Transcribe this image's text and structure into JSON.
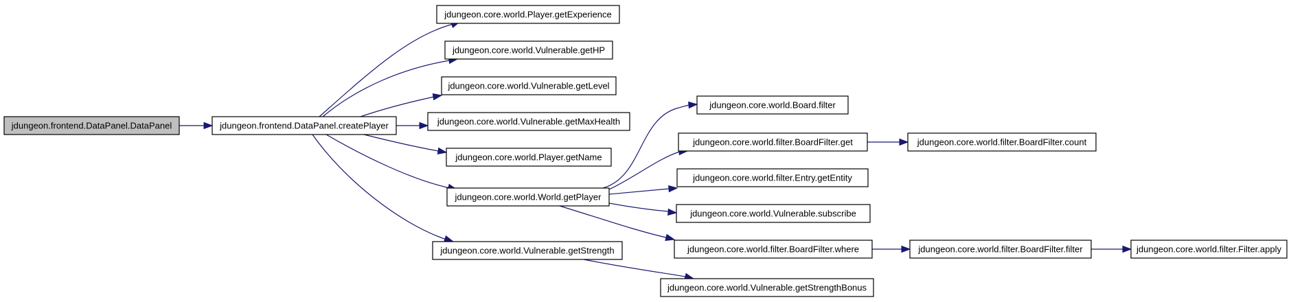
{
  "diagram": {
    "colors": {
      "edge": "#191970",
      "node_fill": "#ffffff",
      "highlight_fill": "#bfbfbf",
      "border": "#000000"
    },
    "nodes": [
      {
        "id": "n0",
        "label": "jdungeon.frontend.DataPanel.DataPanel",
        "highlighted": true
      },
      {
        "id": "n1",
        "label": "jdungeon.frontend.DataPanel.createPlayer"
      },
      {
        "id": "n2",
        "label": "jdungeon.core.world.Player.getExperience"
      },
      {
        "id": "n3",
        "label": "jdungeon.core.world.Vulnerable.getHP"
      },
      {
        "id": "n4",
        "label": "jdungeon.core.world.Vulnerable.getLevel"
      },
      {
        "id": "n5",
        "label": "jdungeon.core.world.Vulnerable.getMaxHealth"
      },
      {
        "id": "n6",
        "label": "jdungeon.core.world.Player.getName"
      },
      {
        "id": "n7",
        "label": "jdungeon.core.world.World.getPlayer"
      },
      {
        "id": "n8",
        "label": "jdungeon.core.world.Vulnerable.getStrength"
      },
      {
        "id": "n9",
        "label": "jdungeon.core.world.Board.filter"
      },
      {
        "id": "n10",
        "label": "jdungeon.core.world.filter.BoardFilter.get"
      },
      {
        "id": "n11",
        "label": "jdungeon.core.world.filter.Entry.getEntity"
      },
      {
        "id": "n12",
        "label": "jdungeon.core.world.Vulnerable.subscribe"
      },
      {
        "id": "n13",
        "label": "jdungeon.core.world.filter.BoardFilter.where"
      },
      {
        "id": "n14",
        "label": "jdungeon.core.world.Vulnerable.getStrengthBonus"
      },
      {
        "id": "n15",
        "label": "jdungeon.core.world.filter.BoardFilter.count"
      },
      {
        "id": "n16",
        "label": "jdungeon.core.world.filter.BoardFilter.filter"
      },
      {
        "id": "n17",
        "label": "jdungeon.core.world.filter.Filter.apply"
      }
    ],
    "edges": [
      {
        "from": "n0",
        "to": "n1"
      },
      {
        "from": "n1",
        "to": "n2"
      },
      {
        "from": "n1",
        "to": "n3"
      },
      {
        "from": "n1",
        "to": "n4"
      },
      {
        "from": "n1",
        "to": "n5"
      },
      {
        "from": "n1",
        "to": "n6"
      },
      {
        "from": "n1",
        "to": "n7"
      },
      {
        "from": "n1",
        "to": "n8"
      },
      {
        "from": "n7",
        "to": "n9"
      },
      {
        "from": "n7",
        "to": "n10"
      },
      {
        "from": "n7",
        "to": "n11"
      },
      {
        "from": "n7",
        "to": "n12"
      },
      {
        "from": "n7",
        "to": "n13"
      },
      {
        "from": "n8",
        "to": "n14"
      },
      {
        "from": "n10",
        "to": "n15"
      },
      {
        "from": "n13",
        "to": "n16"
      },
      {
        "from": "n16",
        "to": "n17"
      }
    ]
  }
}
